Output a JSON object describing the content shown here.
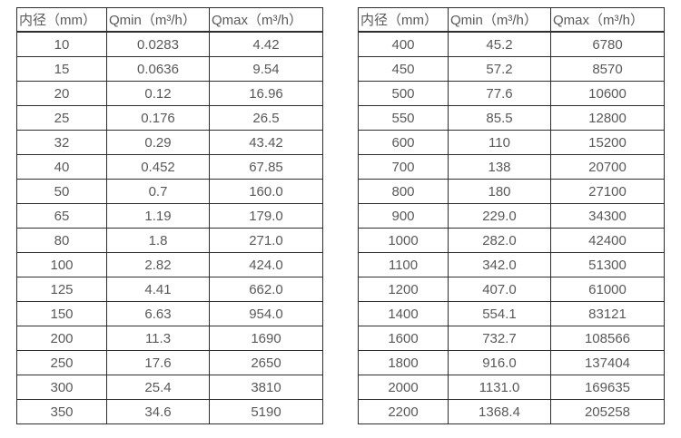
{
  "page": {
    "background_color": "#ffffff",
    "text_color": "#595959",
    "grid_border_color": "#2e2e2e"
  },
  "tables": [
    {
      "headers": [
        "内径（mm）",
        "Qmin（m³/h）",
        "Qmax（m³/h）"
      ],
      "rows": [
        [
          "10",
          "0.0283",
          "4.42"
        ],
        [
          "15",
          "0.0636",
          "9.54"
        ],
        [
          "20",
          "0.12",
          "16.96"
        ],
        [
          "25",
          "0.176",
          "26.5"
        ],
        [
          "32",
          "0.29",
          "43.42"
        ],
        [
          "40",
          "0.452",
          "67.85"
        ],
        [
          "50",
          "0.7",
          "160.0"
        ],
        [
          "65",
          "1.19",
          "179.0"
        ],
        [
          "80",
          "1.8",
          "271.0"
        ],
        [
          "100",
          "2.82",
          "424.0"
        ],
        [
          "125",
          "4.41",
          "662.0"
        ],
        [
          "150",
          "6.63",
          "954.0"
        ],
        [
          "200",
          "11.3",
          "1690"
        ],
        [
          "250",
          "17.6",
          "2650"
        ],
        [
          "300",
          "25.4",
          "3810"
        ],
        [
          "350",
          "34.6",
          "5190"
        ]
      ]
    },
    {
      "headers": [
        "内径（mm）",
        "Qmin（m³/h）",
        "Qmax（m³/h）"
      ],
      "rows": [
        [
          "400",
          "45.2",
          "6780"
        ],
        [
          "450",
          "57.2",
          "8570"
        ],
        [
          "500",
          "77.6",
          "10600"
        ],
        [
          "550",
          "85.5",
          "12800"
        ],
        [
          "600",
          "110",
          "15200"
        ],
        [
          "700",
          "138",
          "20700"
        ],
        [
          "800",
          "180",
          "27100"
        ],
        [
          "900",
          "229.0",
          "34300"
        ],
        [
          "1000",
          "282.0",
          "42400"
        ],
        [
          "1100",
          "342.0",
          "51300"
        ],
        [
          "1200",
          "407.0",
          "61000"
        ],
        [
          "1400",
          "554.1",
          "83121"
        ],
        [
          "1600",
          "732.7",
          "108566"
        ],
        [
          "1800",
          "916.0",
          "137404"
        ],
        [
          "2000",
          "1131.0",
          "169635"
        ],
        [
          "2200",
          "1368.4",
          "205258"
        ]
      ]
    }
  ]
}
